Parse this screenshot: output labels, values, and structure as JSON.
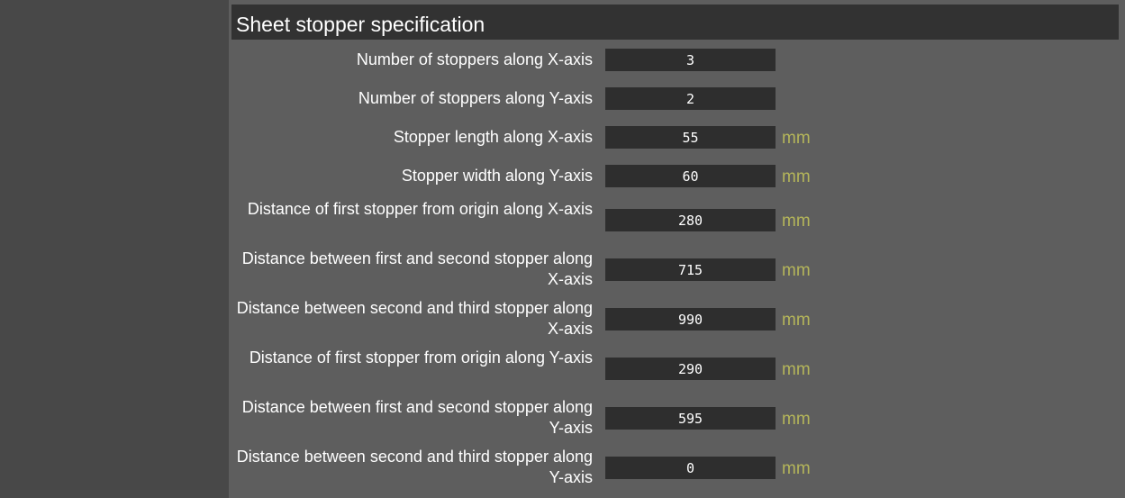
{
  "section": {
    "title": "Sheet stopper specification"
  },
  "fields": [
    {
      "label": "Number of stoppers along X-axis",
      "value": "3",
      "unit": ""
    },
    {
      "label": "Number of stoppers along Y-axis",
      "value": "2",
      "unit": ""
    },
    {
      "label": "Stopper length along X-axis",
      "value": "55",
      "unit": "mm"
    },
    {
      "label": "Stopper width along Y-axis",
      "value": "60",
      "unit": "mm"
    },
    {
      "label": "Distance of first stopper from origin along X-axis",
      "value": "280",
      "unit": "mm"
    },
    {
      "label": "Distance between first and second stopper along X-axis",
      "value": "715",
      "unit": "mm"
    },
    {
      "label": "Distance between second and third stopper along X-axis",
      "value": "990",
      "unit": "mm"
    },
    {
      "label": "Distance of first stopper from origin along Y-axis",
      "value": "290",
      "unit": "mm"
    },
    {
      "label": "Distance between first and second stopper along Y-axis",
      "value": "595",
      "unit": "mm"
    },
    {
      "label": "Distance between second and third stopper along Y-axis",
      "value": "0",
      "unit": "mm"
    }
  ],
  "colors": {
    "panel_bg": "#5e5e5e",
    "header_bg": "#323232",
    "input_bg": "#2e2e2e",
    "unit_text": "#b4b55a",
    "label_text": "#ffffff"
  }
}
